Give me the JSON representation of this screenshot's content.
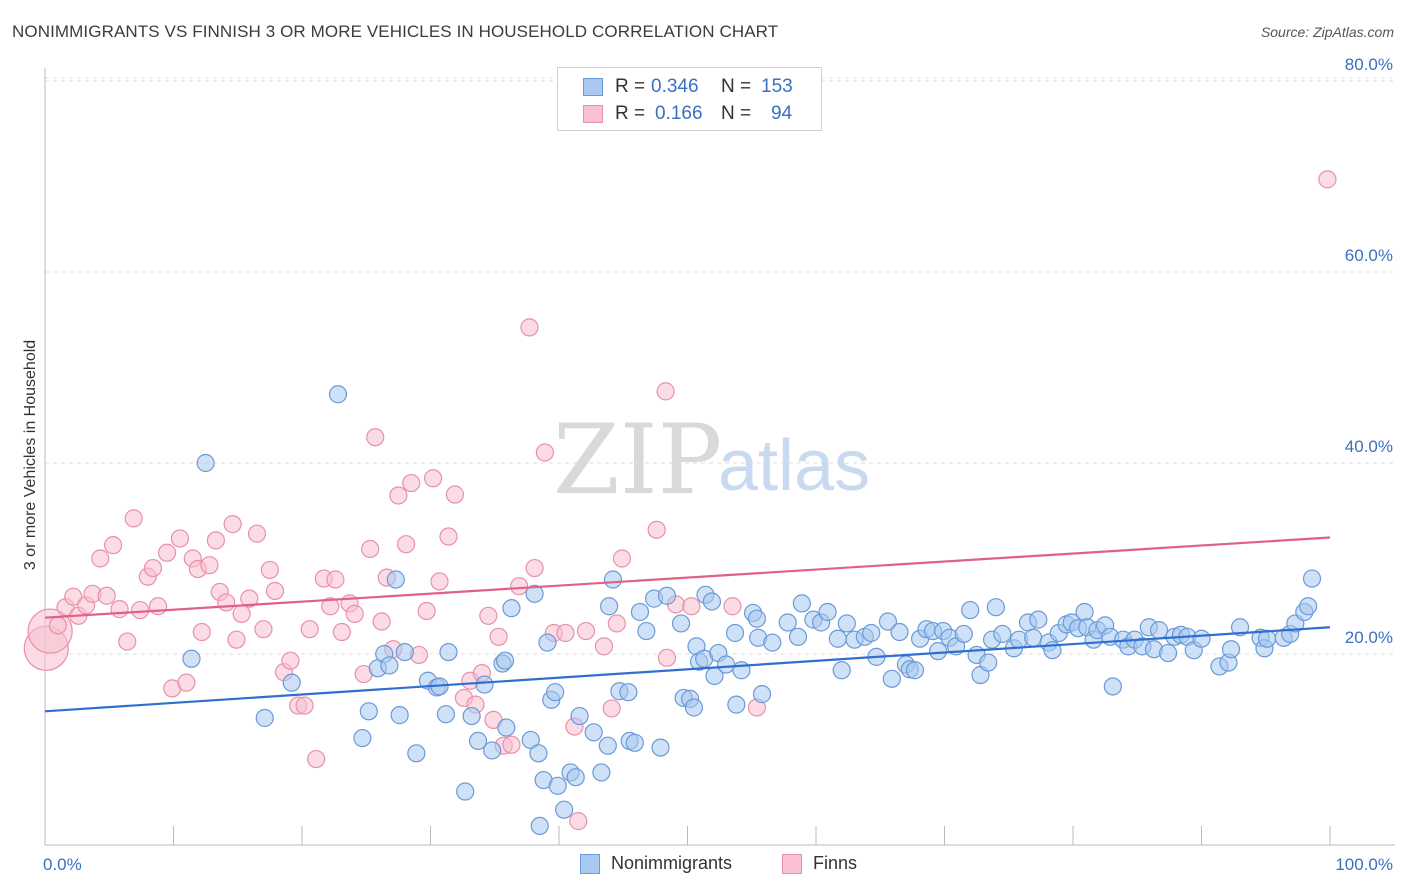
{
  "title": "NONIMMIGRANTS VS FINNISH 3 OR MORE VEHICLES IN HOUSEHOLD CORRELATION CHART",
  "source": "Source: ZipAtlas.com",
  "watermark": {
    "zip": "ZIP",
    "atlas": "atlas"
  },
  "legend": {
    "rows": [
      {
        "r_label": "R =",
        "r_value": "0.346",
        "n_label": "N =",
        "n_value": "153",
        "color": "#a8c8f0",
        "border": "#6a9ad8"
      },
      {
        "r_label": "R =",
        "r_value": "0.166",
        "n_label": "N =",
        "n_value": "94",
        "color": "#f8c0d0",
        "border": "#e890aa"
      }
    ]
  },
  "bottom_legend": [
    {
      "label": "Nonimmigrants",
      "color": "#a8c8f0",
      "border": "#6a9ad8"
    },
    {
      "label": "Finns",
      "color": "#f8c0d0",
      "border": "#e890aa"
    }
  ],
  "chart_data": {
    "type": "scatter",
    "ylabel": "3 or more Vehicles in Household",
    "xlabel": "",
    "x_tick_labels": [
      "0.0%",
      "100.0%"
    ],
    "y_tick_labels": [
      "20.0%",
      "40.0%",
      "60.0%",
      "80.0%"
    ],
    "y_ticks": [
      20,
      40,
      60,
      80
    ],
    "xlim": [
      0,
      100
    ],
    "ylim": [
      0,
      82
    ],
    "grid": "horizontal dashed",
    "legend_position": "top-center",
    "series": [
      {
        "name": "Nonimmigrants",
        "color": "#6a9ad8",
        "fill": "#a8c8f0",
        "trend": [
          [
            0,
            14.0
          ],
          [
            100,
            22.8
          ]
        ],
        "points": [
          [
            12.5,
            40
          ],
          [
            22.8,
            47.2
          ],
          [
            11.4,
            19.5
          ],
          [
            19.2,
            17
          ],
          [
            17.1,
            13.3
          ],
          [
            24.7,
            11.2
          ],
          [
            25.2,
            14
          ],
          [
            25.9,
            18.5
          ],
          [
            26.4,
            20
          ],
          [
            26.8,
            18.8
          ],
          [
            27.3,
            27.8
          ],
          [
            27.6,
            13.6
          ],
          [
            28,
            20.2
          ],
          [
            28.9,
            9.6
          ],
          [
            29.8,
            17.2
          ],
          [
            30.5,
            16.5
          ],
          [
            30.7,
            16.6
          ],
          [
            31.2,
            13.7
          ],
          [
            31.4,
            20.2
          ],
          [
            32.7,
            5.6
          ],
          [
            33.2,
            13.5
          ],
          [
            33.7,
            10.9
          ],
          [
            34.2,
            16.8
          ],
          [
            34.8,
            9.9
          ],
          [
            35.6,
            19
          ],
          [
            35.8,
            19.3
          ],
          [
            35.9,
            12.3
          ],
          [
            36.3,
            24.8
          ],
          [
            37.8,
            11
          ],
          [
            38.1,
            26.3
          ],
          [
            38.4,
            9.6
          ],
          [
            38.5,
            2
          ],
          [
            38.8,
            6.8
          ],
          [
            39.1,
            21.2
          ],
          [
            39.4,
            15.2
          ],
          [
            39.7,
            16
          ],
          [
            39.9,
            6.2
          ],
          [
            40.4,
            3.7
          ],
          [
            40.9,
            7.6
          ],
          [
            41.3,
            7.1
          ],
          [
            41.6,
            13.5
          ],
          [
            42.7,
            11.8
          ],
          [
            43.3,
            7.6
          ],
          [
            43.8,
            10.4
          ],
          [
            43.9,
            25
          ],
          [
            44.2,
            27.8
          ],
          [
            44.7,
            16.1
          ],
          [
            45.4,
            16
          ],
          [
            45.5,
            10.9
          ],
          [
            45.9,
            10.7
          ],
          [
            46.3,
            24.4
          ],
          [
            46.8,
            22.4
          ],
          [
            47.4,
            25.8
          ],
          [
            47.9,
            10.2
          ],
          [
            48.4,
            26.1
          ],
          [
            49.5,
            23.2
          ],
          [
            49.7,
            15.4
          ],
          [
            50.2,
            15.3
          ],
          [
            50.5,
            14.4
          ],
          [
            50.7,
            20.8
          ],
          [
            50.9,
            19.2
          ],
          [
            51.3,
            19.5
          ],
          [
            51.4,
            26.2
          ],
          [
            51.9,
            25.5
          ],
          [
            52.1,
            17.7
          ],
          [
            52.4,
            20.1
          ],
          [
            53,
            18.9
          ],
          [
            53.7,
            22.2
          ],
          [
            53.8,
            14.7
          ],
          [
            54.2,
            18.3
          ],
          [
            55.1,
            24.3
          ],
          [
            55.4,
            23.7
          ],
          [
            55.5,
            21.7
          ],
          [
            55.8,
            15.8
          ],
          [
            56.6,
            21.2
          ],
          [
            57.8,
            23.3
          ],
          [
            58.6,
            21.8
          ],
          [
            58.9,
            25.3
          ],
          [
            59.8,
            23.6
          ],
          [
            60.4,
            23.3
          ],
          [
            60.9,
            24.4
          ],
          [
            61.7,
            21.6
          ],
          [
            62,
            18.3
          ],
          [
            62.4,
            23.2
          ],
          [
            63,
            21.5
          ],
          [
            63.8,
            21.8
          ],
          [
            64.3,
            22.2
          ],
          [
            64.7,
            19.7
          ],
          [
            65.6,
            23.4
          ],
          [
            65.9,
            17.4
          ],
          [
            66.5,
            22.3
          ],
          [
            67,
            18.9
          ],
          [
            67.3,
            18.4
          ],
          [
            67.7,
            18.3
          ],
          [
            68.1,
            21.6
          ],
          [
            68.6,
            22.6
          ],
          [
            69.1,
            22.4
          ],
          [
            69.5,
            20.3
          ],
          [
            69.9,
            22.4
          ],
          [
            70.4,
            21.7
          ],
          [
            70.9,
            20.8
          ],
          [
            71.5,
            22.1
          ],
          [
            72,
            24.6
          ],
          [
            72.5,
            19.9
          ],
          [
            72.8,
            17.8
          ],
          [
            73.4,
            19.1
          ],
          [
            73.7,
            21.5
          ],
          [
            74,
            24.9
          ],
          [
            74.5,
            22.1
          ],
          [
            75.4,
            20.6
          ],
          [
            75.8,
            21.5
          ],
          [
            76.5,
            23.3
          ],
          [
            76.9,
            21.7
          ],
          [
            77.3,
            23.6
          ],
          [
            78.1,
            21.2
          ],
          [
            78.4,
            20.4
          ],
          [
            78.9,
            22.2
          ],
          [
            79.5,
            23.1
          ],
          [
            79.9,
            23.3
          ],
          [
            80.4,
            22.7
          ],
          [
            80.9,
            24.4
          ],
          [
            81.1,
            22.8
          ],
          [
            81.6,
            21.5
          ],
          [
            81.9,
            22.5
          ],
          [
            82.5,
            23
          ],
          [
            82.9,
            21.8
          ],
          [
            83.1,
            16.6
          ],
          [
            83.9,
            21.5
          ],
          [
            84.3,
            20.8
          ],
          [
            84.8,
            21.5
          ],
          [
            85.4,
            20.8
          ],
          [
            85.9,
            22.8
          ],
          [
            86.3,
            20.5
          ],
          [
            86.7,
            22.5
          ],
          [
            87.4,
            20.1
          ],
          [
            87.9,
            21.8
          ],
          [
            88.4,
            22
          ],
          [
            88.9,
            21.8
          ],
          [
            89.4,
            20.4
          ],
          [
            90,
            21.6
          ],
          [
            91.4,
            18.7
          ],
          [
            92.1,
            19.1
          ],
          [
            92.3,
            20.5
          ],
          [
            93,
            22.8
          ],
          [
            94.6,
            21.7
          ],
          [
            94.9,
            20.6
          ],
          [
            95.1,
            21.6
          ],
          [
            96.4,
            21.7
          ],
          [
            96.9,
            22.1
          ],
          [
            97.3,
            23.2
          ],
          [
            98,
            24.4
          ],
          [
            98.3,
            25
          ],
          [
            98.6,
            27.9
          ]
        ]
      },
      {
        "name": "Finns",
        "color": "#e890aa",
        "fill": "#f8c0d0",
        "trend": [
          [
            0,
            23.8
          ],
          [
            100,
            32.2
          ]
        ],
        "points": [
          [
            0.1,
            20.6
          ],
          [
            0.4,
            22.4
          ],
          [
            1,
            23
          ],
          [
            1.6,
            24.9
          ],
          [
            2.2,
            26
          ],
          [
            2.6,
            24
          ],
          [
            3.2,
            25.1
          ],
          [
            3.7,
            26.3
          ],
          [
            4.3,
            30
          ],
          [
            4.8,
            26.1
          ],
          [
            5.3,
            31.4
          ],
          [
            5.8,
            24.7
          ],
          [
            6.4,
            21.3
          ],
          [
            6.9,
            34.2
          ],
          [
            7.4,
            24.6
          ],
          [
            8,
            28.1
          ],
          [
            8.4,
            29
          ],
          [
            8.8,
            25
          ],
          [
            9.5,
            30.6
          ],
          [
            9.9,
            16.4
          ],
          [
            10.5,
            32.1
          ],
          [
            11,
            17
          ],
          [
            11.5,
            30
          ],
          [
            11.9,
            28.9
          ],
          [
            12.2,
            22.3
          ],
          [
            12.8,
            29.3
          ],
          [
            13.3,
            31.9
          ],
          [
            13.6,
            26.5
          ],
          [
            14.1,
            25.4
          ],
          [
            14.6,
            33.6
          ],
          [
            14.9,
            21.5
          ],
          [
            15.3,
            24.2
          ],
          [
            15.9,
            25.8
          ],
          [
            16.5,
            32.6
          ],
          [
            17,
            22.6
          ],
          [
            17.5,
            28.8
          ],
          [
            17.9,
            26.6
          ],
          [
            18.6,
            18.1
          ],
          [
            19.1,
            19.3
          ],
          [
            19.7,
            14.6
          ],
          [
            20.2,
            14.6
          ],
          [
            20.6,
            22.6
          ],
          [
            21.1,
            9
          ],
          [
            21.7,
            27.9
          ],
          [
            22.2,
            25
          ],
          [
            22.6,
            27.8
          ],
          [
            23.1,
            22.3
          ],
          [
            23.7,
            25.3
          ],
          [
            24.1,
            24.2
          ],
          [
            24.8,
            17.9
          ],
          [
            25.3,
            31
          ],
          [
            25.7,
            42.7
          ],
          [
            26.2,
            23.4
          ],
          [
            26.6,
            28
          ],
          [
            27.1,
            20.5
          ],
          [
            27.5,
            36.6
          ],
          [
            28.1,
            31.5
          ],
          [
            28.5,
            37.9
          ],
          [
            29.1,
            19.9
          ],
          [
            29.7,
            24.5
          ],
          [
            30.2,
            38.4
          ],
          [
            30.7,
            27.6
          ],
          [
            31.4,
            32.3
          ],
          [
            31.9,
            36.7
          ],
          [
            32.6,
            15.4
          ],
          [
            33.1,
            17.2
          ],
          [
            33.5,
            14.7
          ],
          [
            34,
            18
          ],
          [
            34.5,
            24
          ],
          [
            34.9,
            13.1
          ],
          [
            35.3,
            21.8
          ],
          [
            35.7,
            10.4
          ],
          [
            36.3,
            10.5
          ],
          [
            36.9,
            27.1
          ],
          [
            37.7,
            54.2
          ],
          [
            38.1,
            29
          ],
          [
            38.9,
            41.1
          ],
          [
            39.6,
            22.2
          ],
          [
            40.5,
            22.2
          ],
          [
            41.2,
            12.4
          ],
          [
            41.5,
            2.5
          ],
          [
            42.1,
            22.4
          ],
          [
            43.5,
            20.8
          ],
          [
            44.1,
            14.3
          ],
          [
            44.5,
            23.2
          ],
          [
            44.9,
            30
          ],
          [
            47.6,
            33
          ],
          [
            48.3,
            47.5
          ],
          [
            48.4,
            19.6
          ],
          [
            49.1,
            25.2
          ],
          [
            50.3,
            25
          ],
          [
            53.5,
            25
          ],
          [
            55.4,
            14.4
          ],
          [
            99.8,
            69.7
          ]
        ]
      }
    ]
  }
}
